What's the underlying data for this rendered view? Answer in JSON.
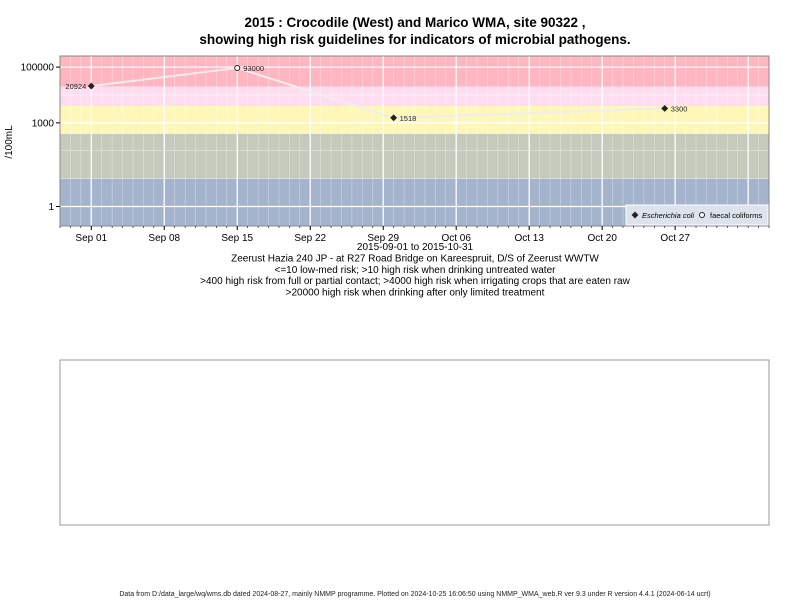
{
  "chart_data": {
    "type": "scatter",
    "title": [
      "2015 : Crocodile (West) and Marico WMA, site 90322 ,",
      "showing high risk guidelines for indicators of microbial pathogens."
    ],
    "ylabel": "/100mL",
    "xlabel": "",
    "y_scale": "log",
    "ylim": [
      0.2,
      250000
    ],
    "xlim": [
      "2015-08-29",
      "2015-11-05"
    ],
    "y_ticks": [
      {
        "value": 1,
        "label": "1"
      },
      {
        "value": 1000,
        "label": "1000"
      },
      {
        "value": 100000,
        "label": "100000"
      }
    ],
    "x_ticks": [
      {
        "date": "2015-09-01",
        "label": "Sep 01"
      },
      {
        "date": "2015-09-08",
        "label": "Sep 08"
      },
      {
        "date": "2015-09-15",
        "label": "Sep 15"
      },
      {
        "date": "2015-09-22",
        "label": "Sep 22"
      },
      {
        "date": "2015-09-29",
        "label": "Sep 29"
      },
      {
        "date": "2015-10-06",
        "label": "Oct 06"
      },
      {
        "date": "2015-10-13",
        "label": "Oct 13"
      },
      {
        "date": "2015-10-20",
        "label": "Oct 20"
      },
      {
        "date": "2015-10-27",
        "label": "Oct 27"
      }
    ],
    "grid": true,
    "bands": [
      {
        "from": 20000,
        "to": 250000,
        "color": "#ffb6c1"
      },
      {
        "from": 4000,
        "to": 20000,
        "color": "#ffddf0"
      },
      {
        "from": 400,
        "to": 4000,
        "color": "#fff7b8"
      },
      {
        "from": 10,
        "to": 400,
        "color": "#c4cbbc"
      },
      {
        "from": 0.2,
        "to": 10,
        "color": "#a4b4cc"
      }
    ],
    "series": [
      {
        "name": "Escherichia coli",
        "marker": "filled-diamond",
        "color": "#222222",
        "points": [
          {
            "x": "2015-09-01",
            "y": 20924,
            "label": "20924"
          },
          {
            "x": "2015-09-30",
            "y": 1518,
            "label": "1518"
          },
          {
            "x": "2015-10-26",
            "y": 3300,
            "label": "3300"
          }
        ]
      },
      {
        "name": "faecal coliforms",
        "marker": "open-circle",
        "color": "#222222",
        "points": [
          {
            "x": "2015-09-15",
            "y": 93000,
            "label": "93000"
          }
        ]
      }
    ],
    "line_through": [
      {
        "x": "2015-09-01",
        "y": 20924
      },
      {
        "x": "2015-09-15",
        "y": 93000
      },
      {
        "x": "2015-09-30",
        "y": 1518
      },
      {
        "x": "2015-10-26",
        "y": 3300
      }
    ],
    "line_color": "#eeeeee",
    "legend_position": "bottom-right",
    "subtitle_lines": [
      "2015-09-01 to 2015-10-31",
      "Zeerust Hazia 240 JP - at R27 Road Bridge on Kareespruit, D/S of Zeerust WWTW",
      "<=10 low-med risk; >10 high risk when drinking untreated water",
      ">400 high risk from full or partial contact; >4000 high risk when irrigating crops that are eaten raw",
      ">20000 high risk when drinking after only limited treatment"
    ]
  },
  "footer": "Data from D:/data_large/wq/wms.db dated 2024-08-27, mainly NMMP programme. Plotted on 2024-10-25 16:06:50 using NMMP_WMA_web.R ver 9.3 under R version 4.4.1 (2024-06-14 ucrt)"
}
